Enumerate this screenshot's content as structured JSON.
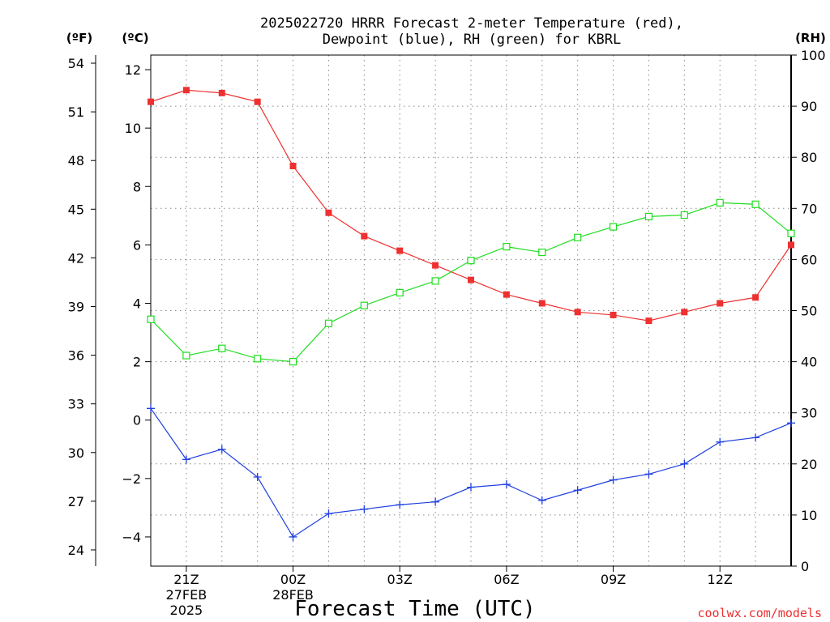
{
  "chart_data": {
    "type": "line",
    "title_line1": "2025022720 HRRR Forecast 2-meter Temperature (red),",
    "title_line2": "Dewpoint (blue), RH (green) for KBRL",
    "xlabel": "Forecast Time (UTC)",
    "left_unit_f": "(ºF)",
    "left_unit_c": "(ºC)",
    "right_unit": "(RH)",
    "credit": "coolwx.com/models",
    "ylim_c": [
      -5,
      12.5
    ],
    "ylim_rh": [
      0,
      100
    ],
    "xlim": [
      20,
      38
    ],
    "x_ticks": [
      {
        "x": 21,
        "lines": [
          "21Z",
          "27FEB",
          "2025"
        ]
      },
      {
        "x": 24,
        "lines": [
          "00Z",
          "28FEB"
        ]
      },
      {
        "x": 27,
        "lines": [
          "03Z"
        ]
      },
      {
        "x": 30,
        "lines": [
          "06Z"
        ]
      },
      {
        "x": 33,
        "lines": [
          "09Z"
        ]
      },
      {
        "x": 36,
        "lines": [
          "12Z"
        ]
      }
    ],
    "y_ticks_c": [
      "-4",
      "-2",
      "0",
      "2",
      "4",
      "6",
      "8",
      "10",
      "12"
    ],
    "y_ticks_f": [
      "24",
      "27",
      "30",
      "33",
      "36",
      "39",
      "42",
      "45",
      "48",
      "51",
      "54"
    ],
    "y_ticks_rh": [
      "0",
      "10",
      "20",
      "30",
      "40",
      "50",
      "60",
      "70",
      "80",
      "90",
      "100"
    ],
    "x": [
      20,
      21,
      22,
      23,
      24,
      25,
      26,
      27,
      28,
      29,
      30,
      31,
      32,
      33,
      34,
      35,
      36,
      37,
      38
    ],
    "series": [
      {
        "name": "Temperature",
        "axis": "c",
        "color": "#ee3030",
        "marker": "filled-square",
        "values": [
          10.9,
          11.3,
          11.2,
          10.9,
          8.7,
          7.1,
          6.3,
          5.8,
          5.3,
          4.8,
          4.3,
          4.0,
          3.7,
          3.6,
          3.4,
          3.7,
          4.0,
          4.2,
          6.0
        ]
      },
      {
        "name": "Dewpoint",
        "axis": "c",
        "color": "#2040e0",
        "marker": "plus",
        "values": [
          0.4,
          -1.35,
          -1.0,
          -1.95,
          -4.0,
          -3.2,
          -3.05,
          -2.9,
          -2.8,
          -2.3,
          -2.2,
          -2.75,
          -2.4,
          -2.05,
          -1.85,
          -1.5,
          -0.75,
          -0.6,
          -0.1
        ]
      },
      {
        "name": "RH",
        "axis": "rh",
        "color": "#20dd20",
        "marker": "open-square",
        "values": [
          48.3,
          41.2,
          42.6,
          40.6,
          40.0,
          47.5,
          51.0,
          53.5,
          55.8,
          59.8,
          62.5,
          61.4,
          64.3,
          66.4,
          68.4,
          68.7,
          71.1,
          70.8,
          65.1
        ]
      }
    ]
  }
}
